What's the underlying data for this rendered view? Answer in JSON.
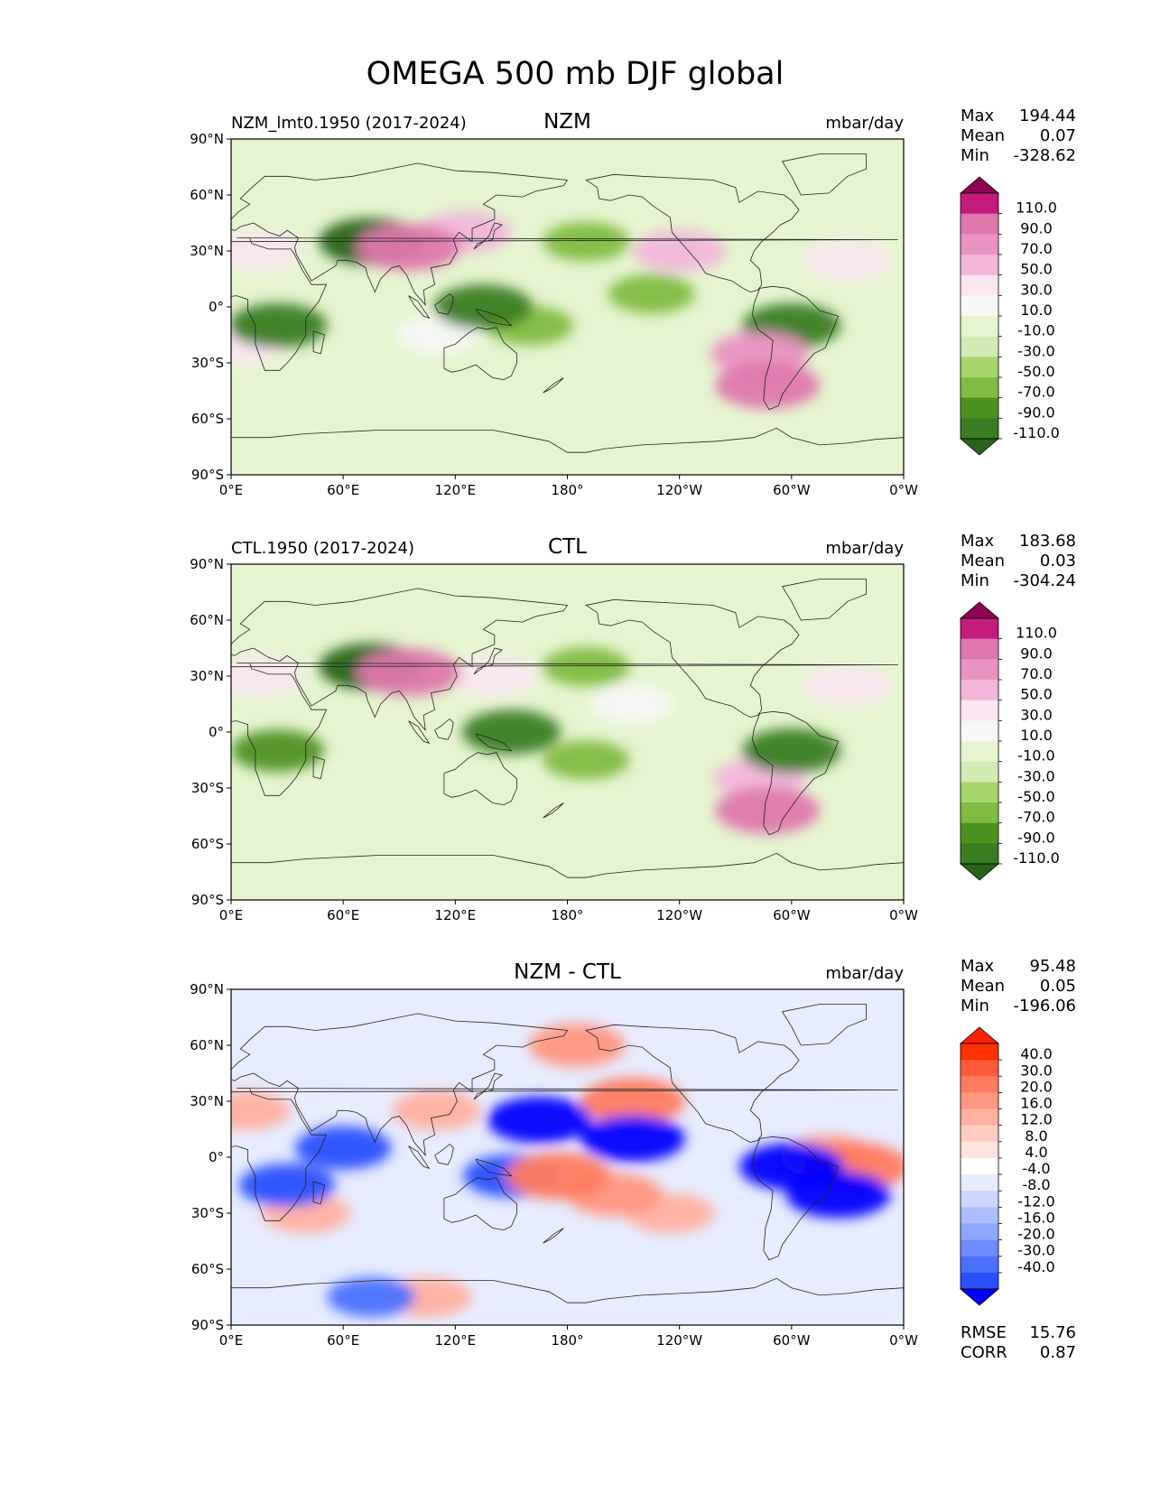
{
  "figure_title": "OMEGA 500 mb DJF global",
  "x_ticks": [
    "0°E",
    "60°E",
    "120°E",
    "180°",
    "120°W",
    "60°W",
    "0°W"
  ],
  "y_ticks": [
    "90°N",
    "60°N",
    "30°N",
    "0°",
    "30°S",
    "60°S",
    "90°S"
  ],
  "colors": {
    "omega_scale": [
      "#276419",
      "#3a7d22",
      "#4d9221",
      "#7fbc41",
      "#a6d56e",
      "#d2ebb5",
      "#e6f5d0",
      "#f7f7f7",
      "#fbe6f1",
      "#f1b6da",
      "#e993c3",
      "#de77ae",
      "#c51b7d",
      "#8e0152"
    ],
    "diff_scale": [
      "#0000ff",
      "#2950ff",
      "#4a70ff",
      "#6e8cff",
      "#8ea8ff",
      "#aebdff",
      "#cdd5ff",
      "#e8ecff",
      "#ffffff",
      "#ffe4df",
      "#ffcdc2",
      "#ffb09f",
      "#ff9680",
      "#ff7b60",
      "#ff5a3c",
      "#ff3200",
      "#ff2000"
    ],
    "land_outline": "#222222"
  },
  "panels": [
    {
      "title": "NZM",
      "subtitle": "NZM_lmt0.1950 (2017-2024)",
      "units": "mbar/day",
      "stats": {
        "max_label": "Max",
        "max": "194.44",
        "mean_label": "Mean",
        "mean": "0.07",
        "min_label": "Min",
        "min": "-328.62"
      },
      "colorbar_labels": [
        "110.0",
        "90.0",
        "70.0",
        "50.0",
        "30.0",
        "10.0",
        "-10.0",
        "-30.0",
        "-50.0",
        "-70.0",
        "-90.0",
        "-110.0"
      ]
    },
    {
      "title": "CTL",
      "subtitle": "CTL.1950 (2017-2024)",
      "units": "mbar/day",
      "stats": {
        "max_label": "Max",
        "max": "183.68",
        "mean_label": "Mean",
        "mean": "0.03",
        "min_label": "Min",
        "min": "-304.24"
      },
      "colorbar_labels": [
        "110.0",
        "90.0",
        "70.0",
        "50.0",
        "30.0",
        "10.0",
        "-10.0",
        "-30.0",
        "-50.0",
        "-70.0",
        "-90.0",
        "-110.0"
      ]
    },
    {
      "title": "NZM - CTL",
      "subtitle": "",
      "units": "mbar/day",
      "stats": {
        "max_label": "Max",
        "max": "95.48",
        "mean_label": "Mean",
        "mean": "0.05",
        "min_label": "Min",
        "min": "-196.06"
      },
      "colorbar_labels": [
        "40.0",
        "30.0",
        "20.0",
        "16.0",
        "12.0",
        "8.0",
        "4.0",
        "-4.0",
        "-8.0",
        "-12.0",
        "-16.0",
        "-20.0",
        "-30.0",
        "-40.0"
      ],
      "metrics": {
        "rmse_label": "RMSE",
        "rmse": "15.76",
        "corr_label": "CORR",
        "corr": "0.87"
      }
    }
  ],
  "chart_data": [
    {
      "type": "heatmap",
      "title": "NZM",
      "variable": "OMEGA 500 mb, DJF",
      "units": "mbar/day",
      "xlim": [
        0,
        360
      ],
      "ylim": [
        -90,
        90
      ],
      "contour_levels": [
        -110,
        -90,
        -70,
        -50,
        -30,
        -10,
        10,
        30,
        50,
        70,
        90,
        110
      ],
      "max": 194.44,
      "mean": 0.07,
      "min": -328.62,
      "features": [
        {
          "lon": 135,
          "lat": 0,
          "value": -90
        },
        {
          "lon": 160,
          "lat": -10,
          "value": -50
        },
        {
          "lon": 25,
          "lat": -10,
          "value": -90
        },
        {
          "lon": 300,
          "lat": -10,
          "value": -90
        },
        {
          "lon": 75,
          "lat": 35,
          "value": -110
        },
        {
          "lon": 95,
          "lat": 32,
          "value": 110
        },
        {
          "lon": 125,
          "lat": 40,
          "value": 70
        },
        {
          "lon": 240,
          "lat": 30,
          "value": 70
        },
        {
          "lon": 283,
          "lat": -25,
          "value": 90
        },
        {
          "lon": 287,
          "lat": -42,
          "value": 110
        },
        {
          "lon": 190,
          "lat": 35,
          "value": -50
        },
        {
          "lon": 225,
          "lat": 7,
          "value": -50
        },
        {
          "lon": 15,
          "lat": 30,
          "value": 50
        },
        {
          "lon": 5,
          "lat": -20,
          "value": 50
        },
        {
          "lon": 110,
          "lat": -15,
          "value": 30
        },
        {
          "lon": 330,
          "lat": 25,
          "value": 50
        }
      ]
    },
    {
      "type": "heatmap",
      "title": "CTL",
      "variable": "OMEGA 500 mb, DJF",
      "units": "mbar/day",
      "xlim": [
        0,
        360
      ],
      "ylim": [
        -90,
        90
      ],
      "contour_levels": [
        -110,
        -90,
        -70,
        -50,
        -30,
        -10,
        10,
        30,
        50,
        70,
        90,
        110
      ],
      "max": 183.68,
      "mean": 0.03,
      "min": -304.24,
      "features": [
        {
          "lon": 150,
          "lat": 0,
          "value": -90
        },
        {
          "lon": 190,
          "lat": -15,
          "value": -50
        },
        {
          "lon": 25,
          "lat": -10,
          "value": -70
        },
        {
          "lon": 300,
          "lat": -10,
          "value": -90
        },
        {
          "lon": 75,
          "lat": 35,
          "value": -110
        },
        {
          "lon": 95,
          "lat": 32,
          "value": 110
        },
        {
          "lon": 140,
          "lat": 30,
          "value": 50
        },
        {
          "lon": 283,
          "lat": -25,
          "value": 70
        },
        {
          "lon": 287,
          "lat": -42,
          "value": 110
        },
        {
          "lon": 190,
          "lat": 35,
          "value": -50
        },
        {
          "lon": 15,
          "lat": 30,
          "value": 50
        },
        {
          "lon": 215,
          "lat": 15,
          "value": 30
        },
        {
          "lon": 330,
          "lat": 25,
          "value": 50
        }
      ]
    },
    {
      "type": "heatmap",
      "title": "NZM - CTL",
      "variable": "OMEGA 500 mb DJF difference",
      "units": "mbar/day",
      "xlim": [
        0,
        360
      ],
      "ylim": [
        -90,
        90
      ],
      "contour_levels": [
        -40,
        -30,
        -20,
        -16,
        -12,
        -8,
        -4,
        4,
        8,
        12,
        16,
        20,
        30,
        40
      ],
      "max": 95.48,
      "mean": 0.05,
      "min": -196.06,
      "rmse": 15.76,
      "corr": 0.87,
      "features": [
        {
          "lon": 175,
          "lat": -10,
          "value": 40
        },
        {
          "lon": 205,
          "lat": -20,
          "value": 30
        },
        {
          "lon": 235,
          "lat": -30,
          "value": 20
        },
        {
          "lon": 215,
          "lat": 30,
          "value": 40
        },
        {
          "lon": 215,
          "lat": 10,
          "value": -40
        },
        {
          "lon": 165,
          "lat": 20,
          "value": -40
        },
        {
          "lon": 110,
          "lat": 25,
          "value": 20
        },
        {
          "lon": 185,
          "lat": 60,
          "value": 30
        },
        {
          "lon": 60,
          "lat": 5,
          "value": -30
        },
        {
          "lon": 335,
          "lat": -5,
          "value": 40
        },
        {
          "lon": 320,
          "lat": 0,
          "value": 30
        },
        {
          "lon": 300,
          "lat": -5,
          "value": -40
        },
        {
          "lon": 325,
          "lat": -20,
          "value": -40
        },
        {
          "lon": 30,
          "lat": -15,
          "value": -30
        },
        {
          "lon": 40,
          "lat": -30,
          "value": 20
        },
        {
          "lon": 150,
          "lat": -10,
          "value": -30
        },
        {
          "lon": 8,
          "lat": 25,
          "value": 20
        },
        {
          "lon": 105,
          "lat": -75,
          "value": 20
        },
        {
          "lon": 75,
          "lat": -75,
          "value": -20
        }
      ]
    }
  ]
}
